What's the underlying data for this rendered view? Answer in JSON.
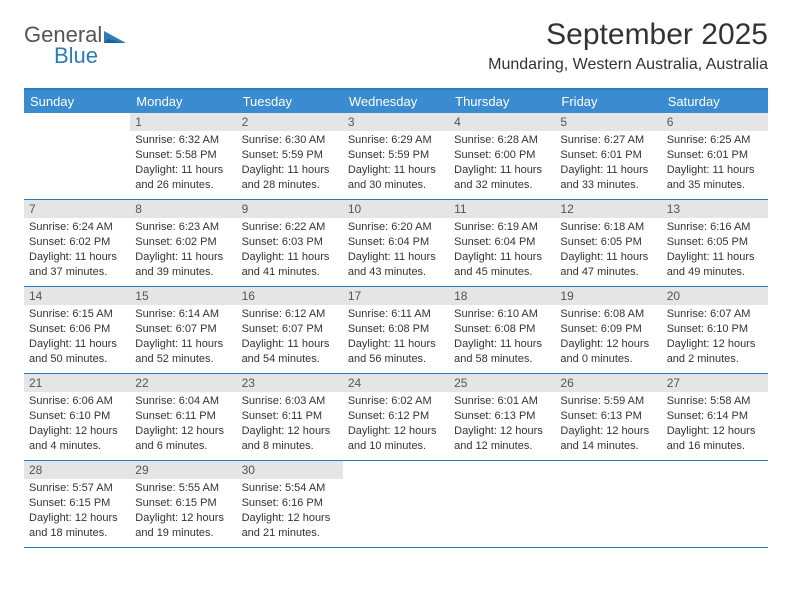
{
  "logo": {
    "word1": "General",
    "word2": "Blue",
    "color_gray": "#555555",
    "color_blue": "#2b7bbd"
  },
  "header": {
    "month_title": "September 2025",
    "location": "Mundaring, Western Australia, Australia"
  },
  "weekdays": [
    "Sunday",
    "Monday",
    "Tuesday",
    "Wednesday",
    "Thursday",
    "Friday",
    "Saturday"
  ],
  "colors": {
    "header_bar": "#3a8bd0",
    "border_blue": "#2b7bbd",
    "daynum_bg": "#e5e5e5",
    "text": "#333333"
  },
  "layout": {
    "start_weekday_index": 1,
    "days_in_month": 30
  },
  "days": {
    "1": {
      "sunrise": "Sunrise: 6:32 AM",
      "sunset": "Sunset: 5:58 PM",
      "day1": "Daylight: 11 hours",
      "day2": "and 26 minutes."
    },
    "2": {
      "sunrise": "Sunrise: 6:30 AM",
      "sunset": "Sunset: 5:59 PM",
      "day1": "Daylight: 11 hours",
      "day2": "and 28 minutes."
    },
    "3": {
      "sunrise": "Sunrise: 6:29 AM",
      "sunset": "Sunset: 5:59 PM",
      "day1": "Daylight: 11 hours",
      "day2": "and 30 minutes."
    },
    "4": {
      "sunrise": "Sunrise: 6:28 AM",
      "sunset": "Sunset: 6:00 PM",
      "day1": "Daylight: 11 hours",
      "day2": "and 32 minutes."
    },
    "5": {
      "sunrise": "Sunrise: 6:27 AM",
      "sunset": "Sunset: 6:01 PM",
      "day1": "Daylight: 11 hours",
      "day2": "and 33 minutes."
    },
    "6": {
      "sunrise": "Sunrise: 6:25 AM",
      "sunset": "Sunset: 6:01 PM",
      "day1": "Daylight: 11 hours",
      "day2": "and 35 minutes."
    },
    "7": {
      "sunrise": "Sunrise: 6:24 AM",
      "sunset": "Sunset: 6:02 PM",
      "day1": "Daylight: 11 hours",
      "day2": "and 37 minutes."
    },
    "8": {
      "sunrise": "Sunrise: 6:23 AM",
      "sunset": "Sunset: 6:02 PM",
      "day1": "Daylight: 11 hours",
      "day2": "and 39 minutes."
    },
    "9": {
      "sunrise": "Sunrise: 6:22 AM",
      "sunset": "Sunset: 6:03 PM",
      "day1": "Daylight: 11 hours",
      "day2": "and 41 minutes."
    },
    "10": {
      "sunrise": "Sunrise: 6:20 AM",
      "sunset": "Sunset: 6:04 PM",
      "day1": "Daylight: 11 hours",
      "day2": "and 43 minutes."
    },
    "11": {
      "sunrise": "Sunrise: 6:19 AM",
      "sunset": "Sunset: 6:04 PM",
      "day1": "Daylight: 11 hours",
      "day2": "and 45 minutes."
    },
    "12": {
      "sunrise": "Sunrise: 6:18 AM",
      "sunset": "Sunset: 6:05 PM",
      "day1": "Daylight: 11 hours",
      "day2": "and 47 minutes."
    },
    "13": {
      "sunrise": "Sunrise: 6:16 AM",
      "sunset": "Sunset: 6:05 PM",
      "day1": "Daylight: 11 hours",
      "day2": "and 49 minutes."
    },
    "14": {
      "sunrise": "Sunrise: 6:15 AM",
      "sunset": "Sunset: 6:06 PM",
      "day1": "Daylight: 11 hours",
      "day2": "and 50 minutes."
    },
    "15": {
      "sunrise": "Sunrise: 6:14 AM",
      "sunset": "Sunset: 6:07 PM",
      "day1": "Daylight: 11 hours",
      "day2": "and 52 minutes."
    },
    "16": {
      "sunrise": "Sunrise: 6:12 AM",
      "sunset": "Sunset: 6:07 PM",
      "day1": "Daylight: 11 hours",
      "day2": "and 54 minutes."
    },
    "17": {
      "sunrise": "Sunrise: 6:11 AM",
      "sunset": "Sunset: 6:08 PM",
      "day1": "Daylight: 11 hours",
      "day2": "and 56 minutes."
    },
    "18": {
      "sunrise": "Sunrise: 6:10 AM",
      "sunset": "Sunset: 6:08 PM",
      "day1": "Daylight: 11 hours",
      "day2": "and 58 minutes."
    },
    "19": {
      "sunrise": "Sunrise: 6:08 AM",
      "sunset": "Sunset: 6:09 PM",
      "day1": "Daylight: 12 hours",
      "day2": "and 0 minutes."
    },
    "20": {
      "sunrise": "Sunrise: 6:07 AM",
      "sunset": "Sunset: 6:10 PM",
      "day1": "Daylight: 12 hours",
      "day2": "and 2 minutes."
    },
    "21": {
      "sunrise": "Sunrise: 6:06 AM",
      "sunset": "Sunset: 6:10 PM",
      "day1": "Daylight: 12 hours",
      "day2": "and 4 minutes."
    },
    "22": {
      "sunrise": "Sunrise: 6:04 AM",
      "sunset": "Sunset: 6:11 PM",
      "day1": "Daylight: 12 hours",
      "day2": "and 6 minutes."
    },
    "23": {
      "sunrise": "Sunrise: 6:03 AM",
      "sunset": "Sunset: 6:11 PM",
      "day1": "Daylight: 12 hours",
      "day2": "and 8 minutes."
    },
    "24": {
      "sunrise": "Sunrise: 6:02 AM",
      "sunset": "Sunset: 6:12 PM",
      "day1": "Daylight: 12 hours",
      "day2": "and 10 minutes."
    },
    "25": {
      "sunrise": "Sunrise: 6:01 AM",
      "sunset": "Sunset: 6:13 PM",
      "day1": "Daylight: 12 hours",
      "day2": "and 12 minutes."
    },
    "26": {
      "sunrise": "Sunrise: 5:59 AM",
      "sunset": "Sunset: 6:13 PM",
      "day1": "Daylight: 12 hours",
      "day2": "and 14 minutes."
    },
    "27": {
      "sunrise": "Sunrise: 5:58 AM",
      "sunset": "Sunset: 6:14 PM",
      "day1": "Daylight: 12 hours",
      "day2": "and 16 minutes."
    },
    "28": {
      "sunrise": "Sunrise: 5:57 AM",
      "sunset": "Sunset: 6:15 PM",
      "day1": "Daylight: 12 hours",
      "day2": "and 18 minutes."
    },
    "29": {
      "sunrise": "Sunrise: 5:55 AM",
      "sunset": "Sunset: 6:15 PM",
      "day1": "Daylight: 12 hours",
      "day2": "and 19 minutes."
    },
    "30": {
      "sunrise": "Sunrise: 5:54 AM",
      "sunset": "Sunset: 6:16 PM",
      "day1": "Daylight: 12 hours",
      "day2": "and 21 minutes."
    }
  }
}
